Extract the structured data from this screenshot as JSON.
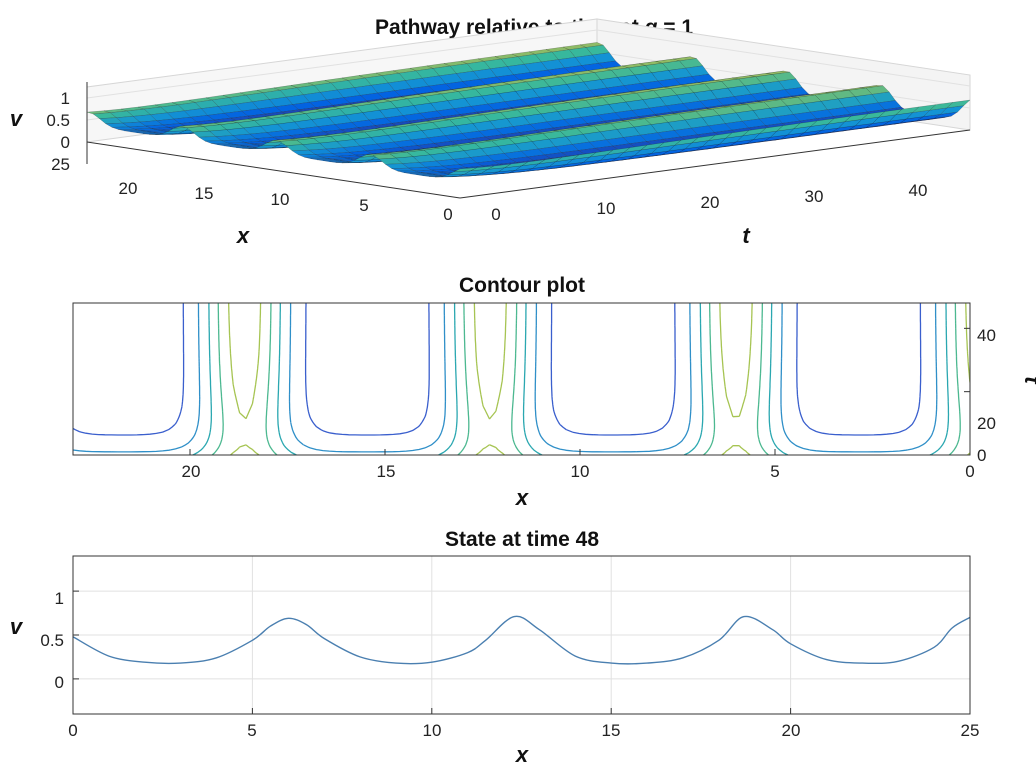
{
  "chart_data": [
    {
      "type": "surface",
      "title_prefix": "Pathway relative to time at ",
      "title_var": "g",
      "title_suffix": " = 1",
      "xlabel": "x",
      "ylabel": "t",
      "zlabel": "v",
      "x_range": [
        0,
        25
      ],
      "t_range": [
        0,
        48
      ],
      "z_range": [
        0,
        1.2
      ],
      "x_ticks": [
        "25",
        "20",
        "15",
        "10",
        "5",
        "0"
      ],
      "t_ticks": [
        "0",
        "10",
        "20",
        "30",
        "40"
      ],
      "z_ticks": [
        "1",
        "0.5",
        "0"
      ],
      "colormap": "parula",
      "period_x": 6.3,
      "peak_x": [
        6.0,
        12.3,
        18.6
      ]
    },
    {
      "type": "contour",
      "title": "Contour plot",
      "xlabel": "x",
      "ylabel": "t",
      "x_range": [
        23,
        0
      ],
      "y_range": [
        0,
        48
      ],
      "x_ticks": [
        "20",
        "15",
        "10",
        "5",
        "0"
      ],
      "y_ticks": [
        "0",
        "20",
        "40"
      ],
      "levels": [
        0.25,
        0.35,
        0.45,
        0.55,
        0.65,
        0.75
      ],
      "level_colors": [
        "#3a5fcd",
        "#2f8fc8",
        "#2aa7b0",
        "#4cb890",
        "#a6c452",
        "#e8c93a"
      ]
    },
    {
      "type": "line",
      "title": "State at time 48",
      "xlabel": "x",
      "ylabel": "v",
      "xlim": [
        0,
        25
      ],
      "ylim": [
        -0.4,
        1.4
      ],
      "x_ticks": [
        "0",
        "5",
        "10",
        "15",
        "20",
        "25"
      ],
      "y_ticks": [
        "1",
        "0.5",
        "0"
      ],
      "grid": true,
      "color": "#4a7fb0",
      "x": [
        0,
        1,
        2,
        3,
        4,
        5,
        5.5,
        6,
        6.5,
        7,
        8,
        9,
        10,
        11,
        11.5,
        12.3,
        13,
        14,
        15,
        16,
        17,
        18,
        18.7,
        19.5,
        20,
        21,
        22,
        23,
        24,
        24.5,
        25
      ],
      "y": [
        0.48,
        0.26,
        0.19,
        0.18,
        0.24,
        0.44,
        0.6,
        0.69,
        0.62,
        0.46,
        0.25,
        0.18,
        0.19,
        0.3,
        0.44,
        0.71,
        0.56,
        0.26,
        0.18,
        0.18,
        0.24,
        0.44,
        0.71,
        0.56,
        0.4,
        0.22,
        0.18,
        0.2,
        0.36,
        0.58,
        0.7
      ]
    }
  ]
}
